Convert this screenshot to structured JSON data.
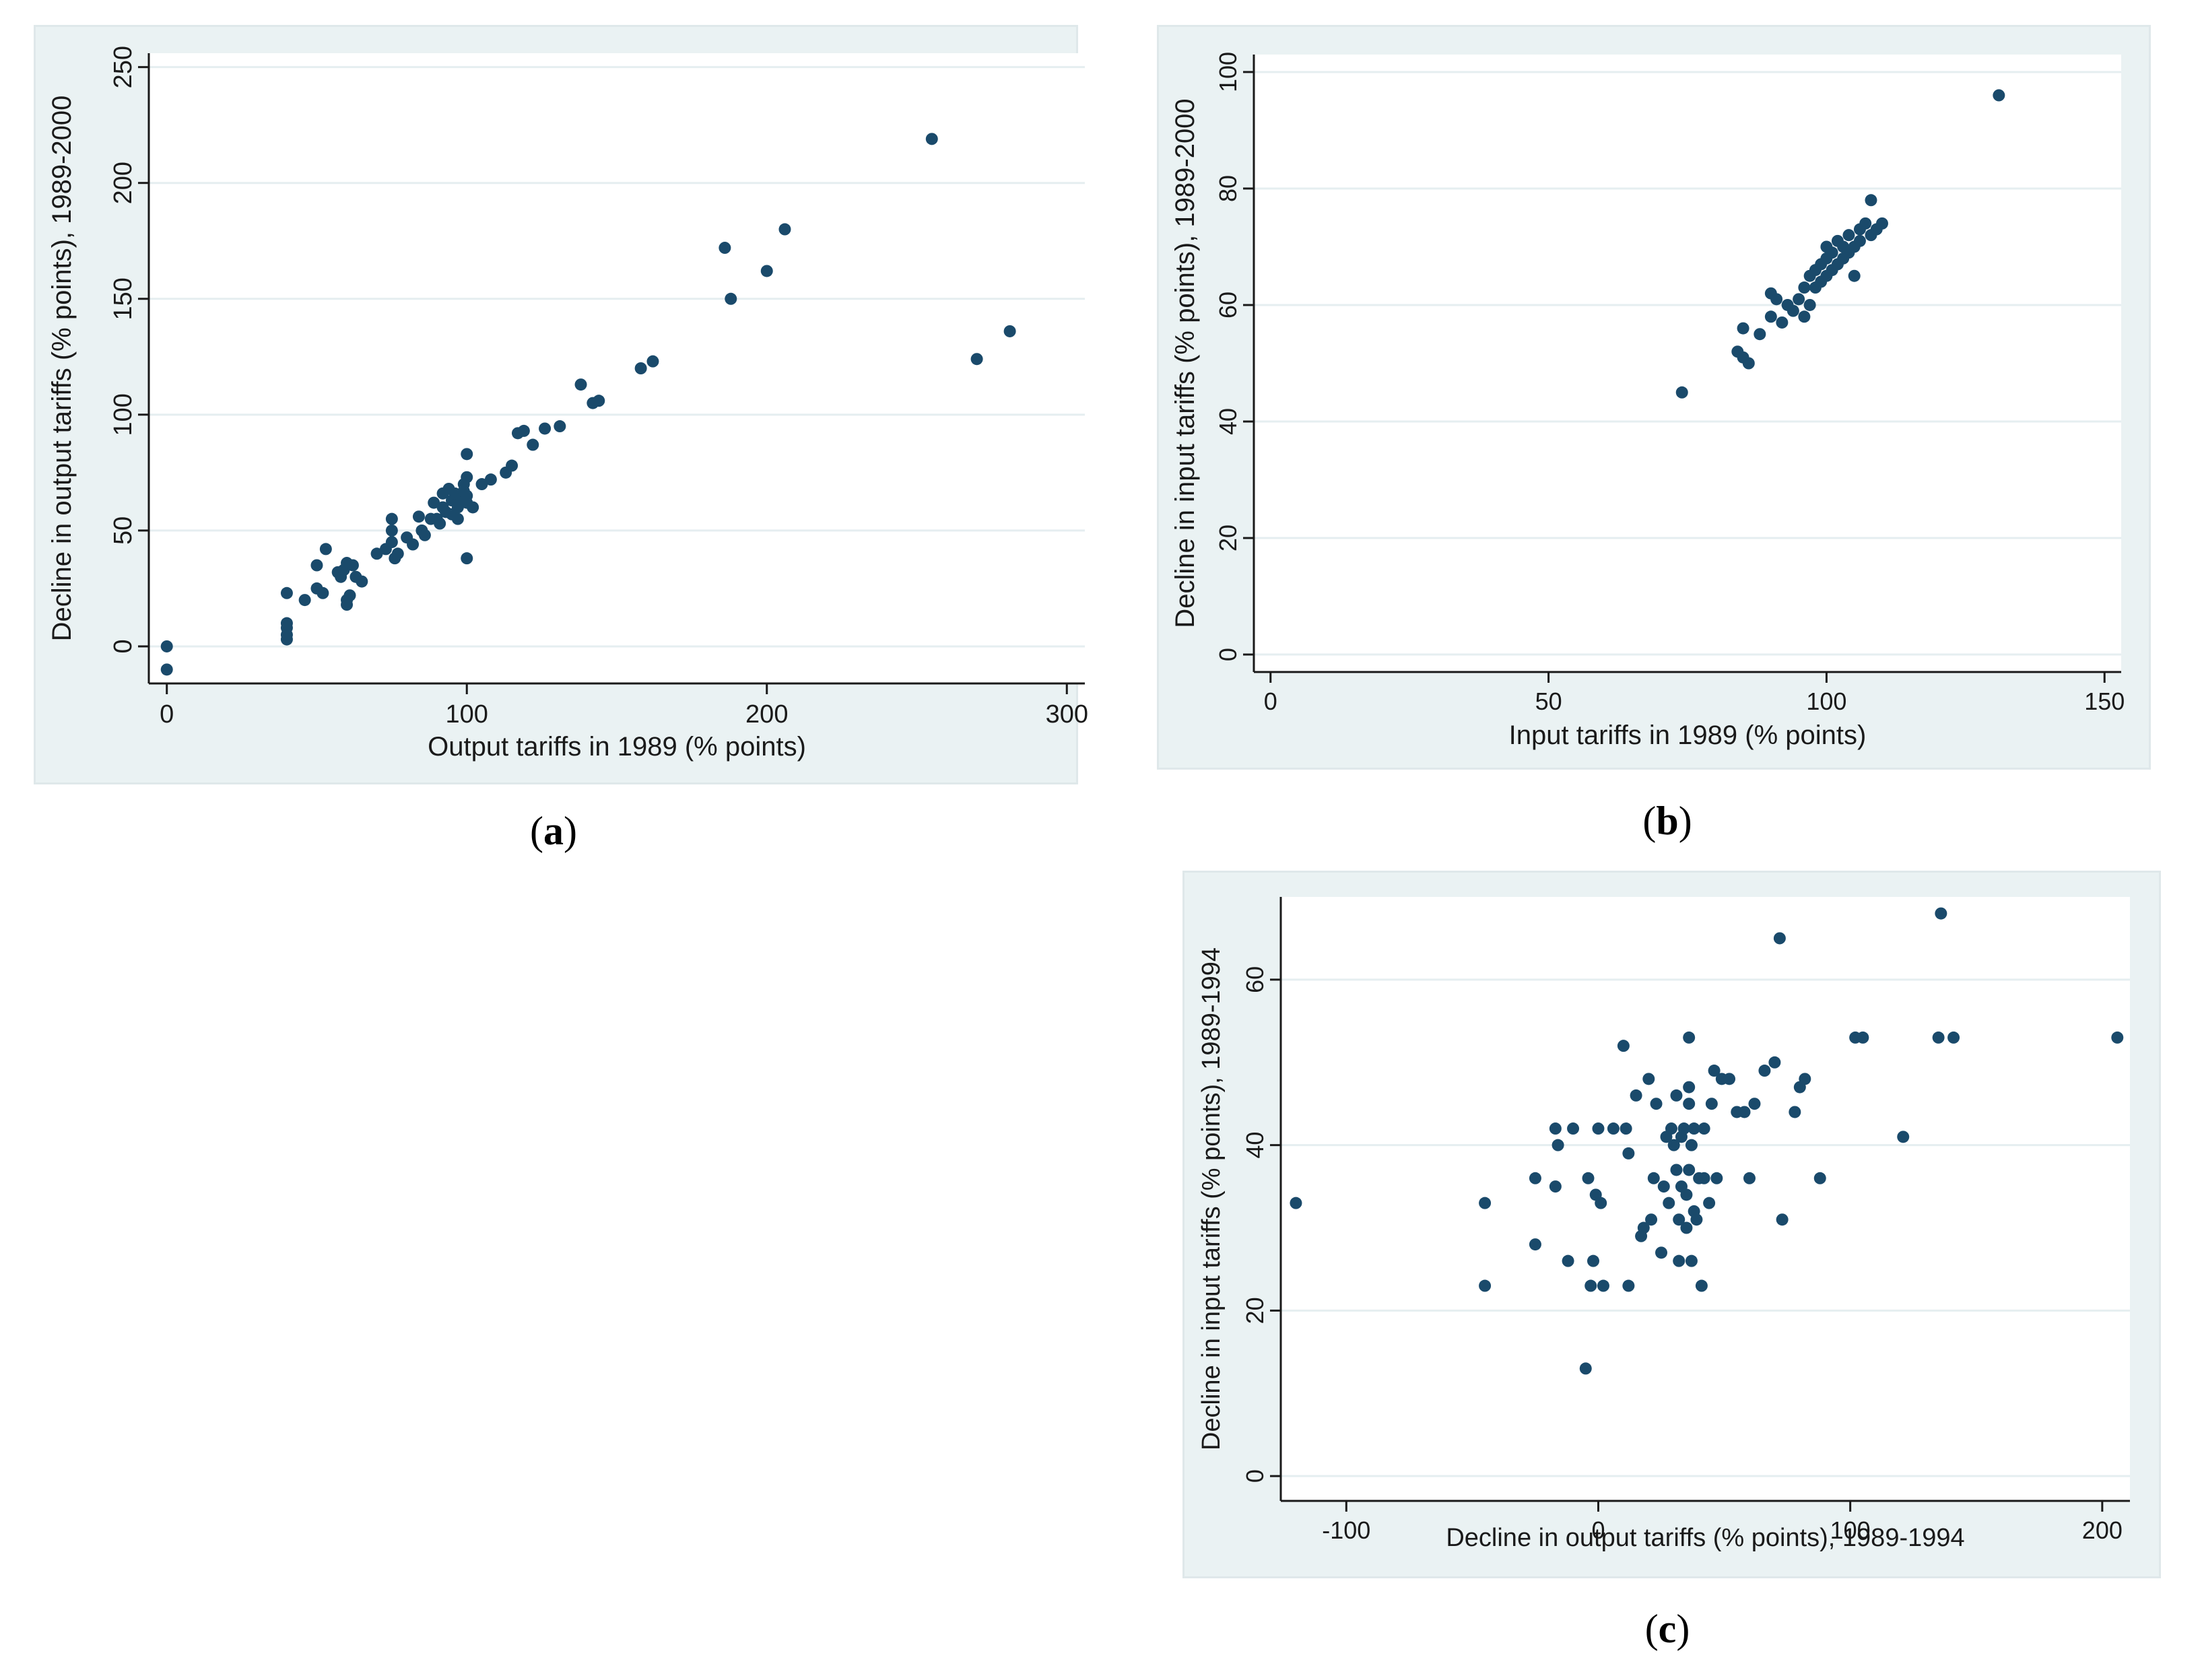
{
  "figure_labels": {
    "a": "a",
    "b": "b",
    "c": "c"
  },
  "chart_data": [
    {
      "id": "a",
      "type": "scatter",
      "title": "",
      "xlabel": "Output tariffs in 1989 (% points)",
      "ylabel": "Decline in output tariffs (% points), 1989-2000",
      "xlim": [
        -6,
        306
      ],
      "ylim": [
        -16,
        256
      ],
      "xticks": [
        0,
        100,
        200,
        300
      ],
      "yticks": [
        0,
        50,
        100,
        150,
        200,
        250
      ],
      "grid": true,
      "marker_color": "#1a4a6b",
      "points": [
        [
          0,
          0
        ],
        [
          0,
          -10
        ],
        [
          40,
          23
        ],
        [
          40,
          10
        ],
        [
          40,
          8
        ],
        [
          40,
          5
        ],
        [
          40,
          3
        ],
        [
          46,
          20
        ],
        [
          50,
          25
        ],
        [
          50,
          35
        ],
        [
          52,
          23
        ],
        [
          53,
          42
        ],
        [
          57,
          32
        ],
        [
          58,
          30
        ],
        [
          59,
          33
        ],
        [
          60,
          20
        ],
        [
          60,
          18
        ],
        [
          60,
          36
        ],
        [
          61,
          22
        ],
        [
          62,
          35
        ],
        [
          63,
          30
        ],
        [
          65,
          28
        ],
        [
          70,
          40
        ],
        [
          73,
          42
        ],
        [
          75,
          55
        ],
        [
          75,
          50
        ],
        [
          75,
          45
        ],
        [
          76,
          38
        ],
        [
          77,
          40
        ],
        [
          80,
          47
        ],
        [
          82,
          44
        ],
        [
          84,
          56
        ],
        [
          85,
          50
        ],
        [
          86,
          48
        ],
        [
          88,
          55
        ],
        [
          89,
          62
        ],
        [
          90,
          55
        ],
        [
          91,
          53
        ],
        [
          92,
          60
        ],
        [
          92,
          66
        ],
        [
          93,
          58
        ],
        [
          94,
          68
        ],
        [
          95,
          57
        ],
        [
          95,
          63
        ],
        [
          96,
          66
        ],
        [
          97,
          60
        ],
        [
          97,
          55
        ],
        [
          98,
          65
        ],
        [
          98,
          62
        ],
        [
          99,
          67
        ],
        [
          99,
          70
        ],
        [
          100,
          83
        ],
        [
          100,
          73
        ],
        [
          100,
          65
        ],
        [
          100,
          62
        ],
        [
          100,
          38
        ],
        [
          102,
          60
        ],
        [
          105,
          70
        ],
        [
          108,
          72
        ],
        [
          113,
          75
        ],
        [
          115,
          78
        ],
        [
          117,
          92
        ],
        [
          119,
          93
        ],
        [
          122,
          87
        ],
        [
          126,
          94
        ],
        [
          131,
          95
        ],
        [
          138,
          113
        ],
        [
          142,
          105
        ],
        [
          144,
          106
        ],
        [
          158,
          120
        ],
        [
          162,
          123
        ],
        [
          186,
          172
        ],
        [
          188,
          150
        ],
        [
          200,
          162
        ],
        [
          206,
          180
        ],
        [
          255,
          219
        ],
        [
          270,
          124
        ],
        [
          281,
          136
        ]
      ]
    },
    {
      "id": "b",
      "type": "scatter",
      "title": "",
      "xlabel": "Input tariffs in 1989 (% points)",
      "ylabel": "Decline in input tariffs (% points), 1989-2000",
      "xlim": [
        -3,
        153
      ],
      "ylim": [
        -3,
        103
      ],
      "xticks": [
        0,
        50,
        100,
        150
      ],
      "yticks": [
        0,
        20,
        40,
        60,
        80,
        100
      ],
      "grid": true,
      "marker_color": "#1a4a6b",
      "points": [
        [
          74,
          45
        ],
        [
          84,
          52
        ],
        [
          85,
          51
        ],
        [
          85,
          56
        ],
        [
          86,
          50
        ],
        [
          88,
          55
        ],
        [
          90,
          58
        ],
        [
          90,
          62
        ],
        [
          91,
          61
        ],
        [
          92,
          57
        ],
        [
          93,
          60
        ],
        [
          94,
          59
        ],
        [
          95,
          61
        ],
        [
          96,
          63
        ],
        [
          96,
          58
        ],
        [
          97,
          60
        ],
        [
          97,
          65
        ],
        [
          98,
          66
        ],
        [
          98,
          63
        ],
        [
          99,
          64
        ],
        [
          99,
          67
        ],
        [
          100,
          65
        ],
        [
          100,
          68
        ],
        [
          100,
          70
        ],
        [
          101,
          66
        ],
        [
          101,
          69
        ],
        [
          102,
          67
        ],
        [
          102,
          71
        ],
        [
          103,
          68
        ],
        [
          103,
          70
        ],
        [
          104,
          69
        ],
        [
          104,
          72
        ],
        [
          105,
          65
        ],
        [
          105,
          70
        ],
        [
          106,
          73
        ],
        [
          106,
          71
        ],
        [
          107,
          74
        ],
        [
          108,
          72
        ],
        [
          108,
          78
        ],
        [
          109,
          73
        ],
        [
          110,
          74
        ],
        [
          131,
          96
        ]
      ]
    },
    {
      "id": "c",
      "type": "scatter",
      "title": "",
      "xlabel": "Decline in output tariffs (% points), 1989-1994",
      "ylabel": "Decline in input tariffs (% points), 1989-1994",
      "xlim": [
        -126,
        211
      ],
      "ylim": [
        -3,
        70
      ],
      "xticks": [
        -100,
        0,
        100,
        200
      ],
      "yticks": [
        0,
        20,
        40,
        60
      ],
      "grid": true,
      "marker_color": "#1a4a6b",
      "points": [
        [
          -120,
          33
        ],
        [
          -45,
          33
        ],
        [
          -45,
          23
        ],
        [
          -25,
          36
        ],
        [
          -25,
          28
        ],
        [
          -17,
          42
        ],
        [
          -16,
          40
        ],
        [
          -17,
          35
        ],
        [
          -12,
          26
        ],
        [
          -10,
          42
        ],
        [
          -5,
          13
        ],
        [
          -4,
          36
        ],
        [
          -3,
          23
        ],
        [
          -2,
          26
        ],
        [
          -1,
          34
        ],
        [
          0,
          42
        ],
        [
          1,
          33
        ],
        [
          2,
          23
        ],
        [
          6,
          42
        ],
        [
          10,
          52
        ],
        [
          11,
          42
        ],
        [
          12,
          39
        ],
        [
          12,
          23
        ],
        [
          15,
          46
        ],
        [
          17,
          29
        ],
        [
          18,
          30
        ],
        [
          20,
          48
        ],
        [
          21,
          31
        ],
        [
          22,
          36
        ],
        [
          23,
          45
        ],
        [
          25,
          27
        ],
        [
          26,
          35
        ],
        [
          27,
          41
        ],
        [
          28,
          33
        ],
        [
          29,
          42
        ],
        [
          30,
          40
        ],
        [
          31,
          37
        ],
        [
          31,
          46
        ],
        [
          32,
          31
        ],
        [
          32,
          26
        ],
        [
          33,
          41
        ],
        [
          33,
          35
        ],
        [
          34,
          42
        ],
        [
          35,
          34
        ],
        [
          35,
          30
        ],
        [
          36,
          53
        ],
        [
          36,
          47
        ],
        [
          36,
          45
        ],
        [
          36,
          37
        ],
        [
          37,
          26
        ],
        [
          37,
          40
        ],
        [
          38,
          42
        ],
        [
          38,
          32
        ],
        [
          39,
          31
        ],
        [
          40,
          36
        ],
        [
          41,
          23
        ],
        [
          42,
          42
        ],
        [
          42,
          36
        ],
        [
          44,
          33
        ],
        [
          45,
          45
        ],
        [
          46,
          49
        ],
        [
          47,
          36
        ],
        [
          49,
          48
        ],
        [
          52,
          48
        ],
        [
          55,
          44
        ],
        [
          58,
          44
        ],
        [
          60,
          36
        ],
        [
          62,
          45
        ],
        [
          66,
          49
        ],
        [
          70,
          50
        ],
        [
          72,
          65
        ],
        [
          73,
          31
        ],
        [
          78,
          44
        ],
        [
          80,
          47
        ],
        [
          82,
          48
        ],
        [
          88,
          36
        ],
        [
          102,
          53
        ],
        [
          105,
          53
        ],
        [
          121,
          41
        ],
        [
          135,
          53
        ],
        [
          136,
          68
        ],
        [
          141,
          53
        ],
        [
          206,
          53
        ]
      ]
    }
  ]
}
